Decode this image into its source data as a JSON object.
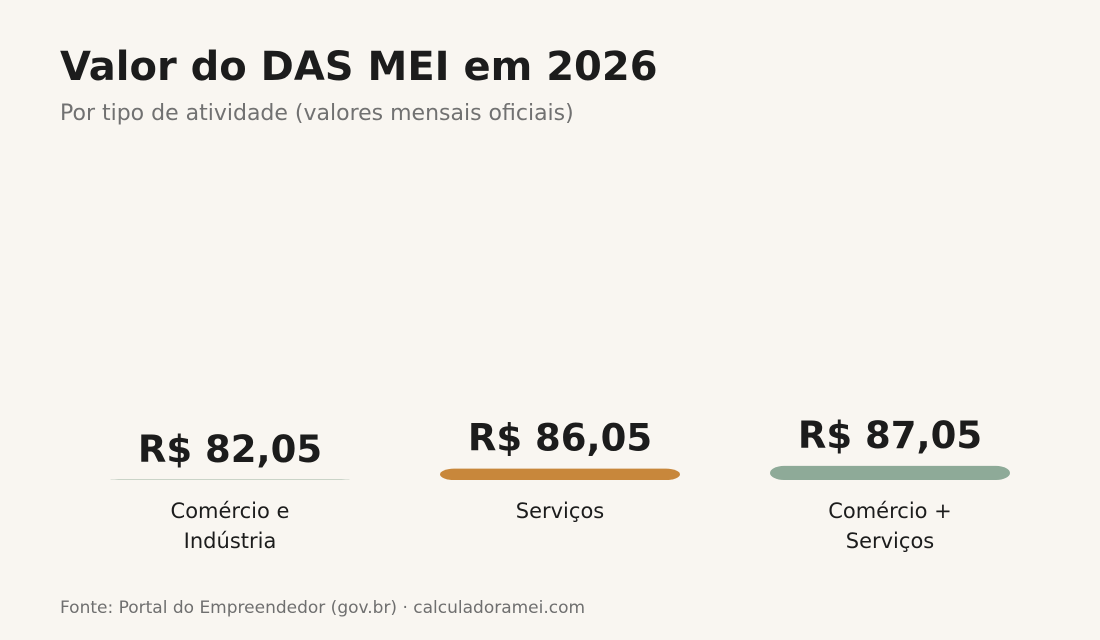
{
  "title": "Valor do DAS MEI em 2026",
  "subtitle": "Por tipo de atividade (valores mensais oficiais)",
  "footer": "Fonte: Portal do Empreendedor (gov.br) · calculadoramei.com",
  "chart_data": {
    "type": "bar",
    "categories": [
      [
        "Comércio e",
        "Indústria"
      ],
      [
        "Serviços"
      ],
      [
        "Comércio +",
        "Serviços"
      ]
    ],
    "values": [
      82.05,
      86.05,
      87.05
    ],
    "value_labels": [
      "R$ 82,05",
      "R$ 86,05",
      "R$ 87,05"
    ],
    "colors": [
      "#3d6c50",
      "#c8873b",
      "#8eaa98"
    ],
    "grid": false
  }
}
